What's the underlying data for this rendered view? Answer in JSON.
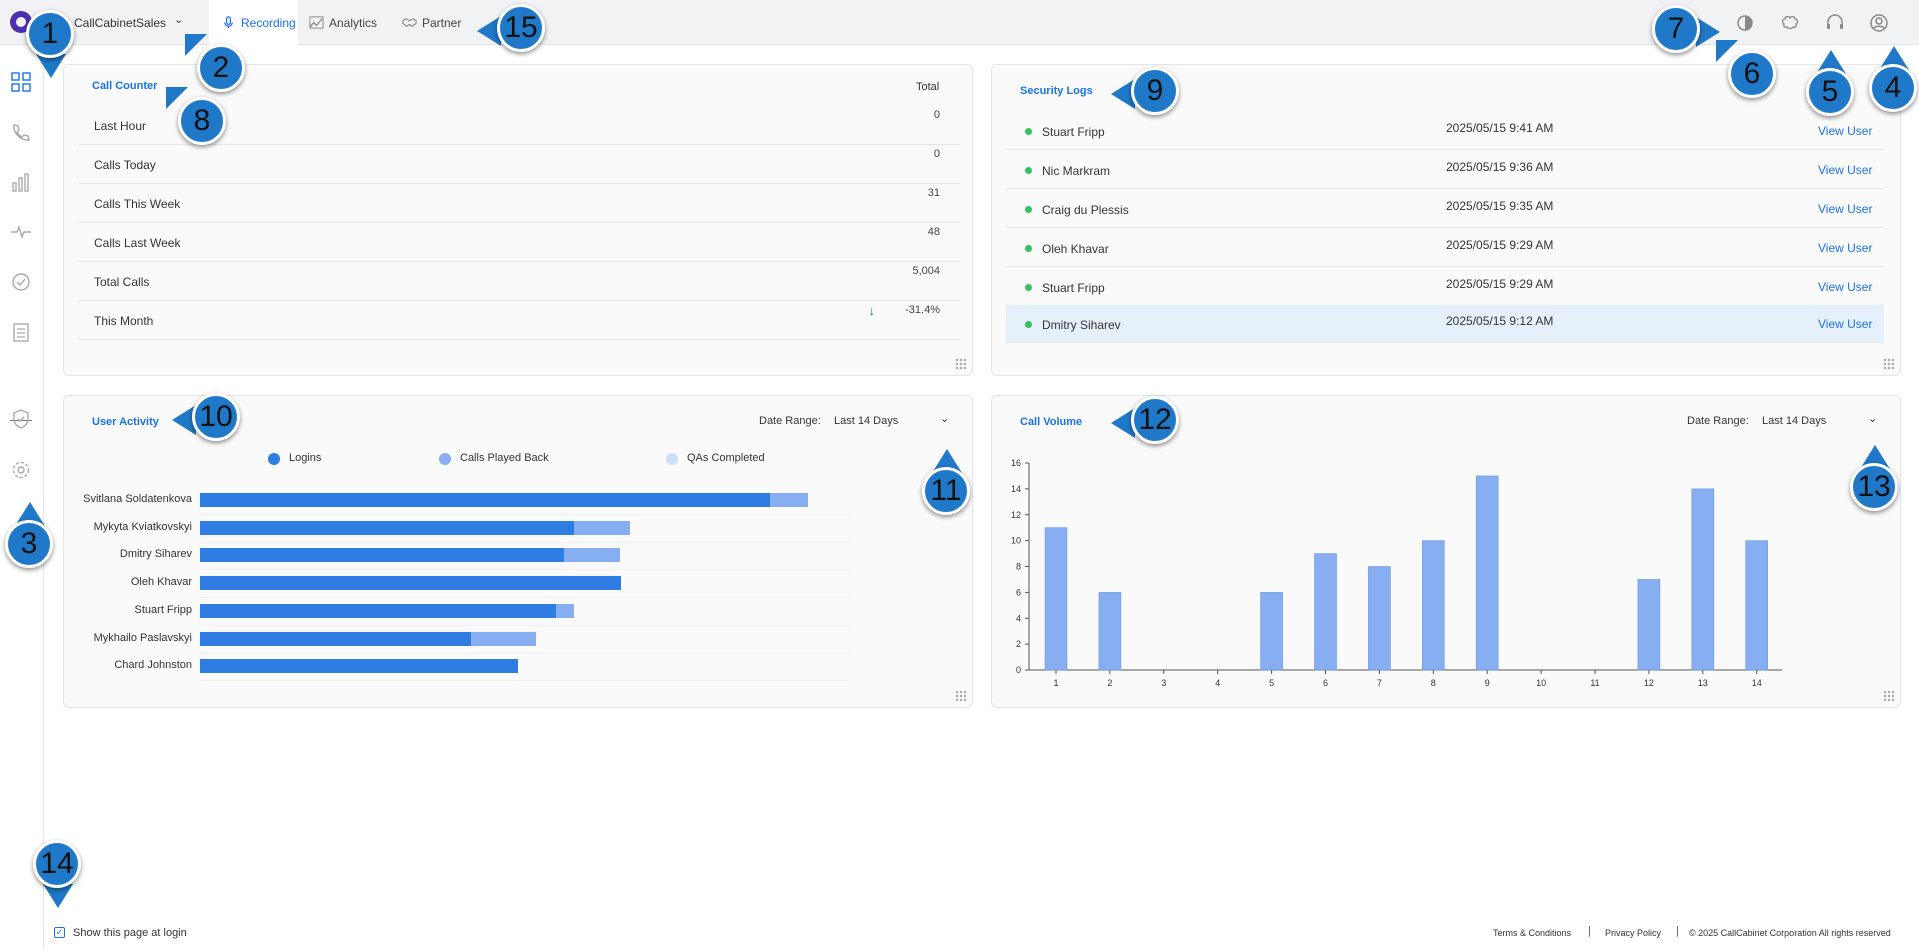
{
  "header": {
    "tenant": "CallCabinetSales",
    "tabs": [
      {
        "label": "Recording",
        "active": true
      },
      {
        "label": "Analytics",
        "active": false
      },
      {
        "label": "Partner",
        "active": false
      }
    ],
    "icons": [
      "theme-icon",
      "brain-icon",
      "headset-icon",
      "user-icon"
    ]
  },
  "sidebar": {
    "icons": [
      "dashboard-icon",
      "phone-icon",
      "bar-chart-icon",
      "pulse-icon",
      "check-badge-icon",
      "clipboard-icon",
      "shield-icon",
      "gear-icon"
    ]
  },
  "call_counter": {
    "title": "Call Counter",
    "total_header": "Total",
    "rows": [
      {
        "label": "Last Hour",
        "value": "0"
      },
      {
        "label": "Calls Today",
        "value": "0"
      },
      {
        "label": "Calls This Week",
        "value": "31"
      },
      {
        "label": "Calls Last Week",
        "value": "48"
      },
      {
        "label": "Total Calls",
        "value": "5,004"
      },
      {
        "label": "This Month",
        "value": "-31.4%",
        "trend": "down"
      }
    ]
  },
  "security_logs": {
    "title": "Security Logs",
    "action_label": "View User",
    "rows": [
      {
        "name": "Stuart Fripp",
        "time": "2025/05/15 9:41 AM"
      },
      {
        "name": "Nic Markram",
        "time": "2025/05/15 9:36 AM"
      },
      {
        "name": "Craig du Plessis",
        "time": "2025/05/15 9:35 AM"
      },
      {
        "name": "Oleh Khavar",
        "time": "2025/05/15 9:29 AM"
      },
      {
        "name": "Stuart Fripp",
        "time": "2025/05/15 9:29 AM"
      },
      {
        "name": "Dmitry Siharev",
        "time": "2025/05/15 9:12 AM",
        "highlighted": true
      }
    ]
  },
  "user_activity": {
    "title": "User Activity",
    "date_range_label": "Date Range:",
    "date_range_value": "Last 14 Days",
    "legend": [
      {
        "name": "Logins",
        "color": "#2f7ce3"
      },
      {
        "name": "Calls Played Back",
        "color": "#86aef0"
      },
      {
        "name": "QAs Completed",
        "color": "#cfdffa"
      }
    ],
    "users": [
      {
        "name": "Svitlana Soldatenkova",
        "logins": 570,
        "calls_played_back": 38,
        "qas_completed": 0
      },
      {
        "name": "Mykyta Kviatkovskyi",
        "logins": 374,
        "calls_played_back": 56,
        "qas_completed": 0
      },
      {
        "name": "Dmitry Siharev",
        "logins": 364,
        "calls_played_back": 56,
        "qas_completed": 0
      },
      {
        "name": "Oleh Khavar",
        "logins": 421,
        "calls_played_back": 0,
        "qas_completed": 0
      },
      {
        "name": "Stuart Fripp",
        "logins": 356,
        "calls_played_back": 18,
        "qas_completed": 0
      },
      {
        "name": "Mykhailo Paslavskyi",
        "logins": 271,
        "calls_played_back": 65,
        "qas_completed": 0
      },
      {
        "name": "Chard Johnston",
        "logins": 318,
        "calls_played_back": 0,
        "qas_completed": 0
      }
    ]
  },
  "call_volume": {
    "title": "Call Volume",
    "date_range_label": "Date Range:",
    "date_range_value": "Last 14 Days",
    "bar_color": "#86aef0"
  },
  "chart_data": {
    "type": "bar",
    "title": "Call Volume",
    "xlabel": "",
    "ylabel": "",
    "categories": [
      "1",
      "2",
      "3",
      "4",
      "5",
      "6",
      "7",
      "8",
      "9",
      "10",
      "11",
      "12",
      "13",
      "14"
    ],
    "values": [
      11,
      6,
      0,
      0,
      6,
      9,
      8,
      10,
      15,
      0,
      0,
      7,
      14,
      10
    ],
    "ylim": [
      0,
      16
    ],
    "yticks": [
      0,
      2,
      4,
      6,
      8,
      10,
      12,
      14,
      16
    ],
    "grid": false
  },
  "badges": [
    "1",
    "2",
    "3",
    "4",
    "5",
    "6",
    "7",
    "8",
    "9",
    "10",
    "11",
    "12",
    "13",
    "14",
    "15"
  ],
  "footer": {
    "checkbox_label": "Show this page at login",
    "checked": true,
    "links": [
      "Terms & Conditions",
      "Privacy Policy"
    ],
    "copyright": "© 2025 CallCabinet Corporation All rights reserved"
  }
}
